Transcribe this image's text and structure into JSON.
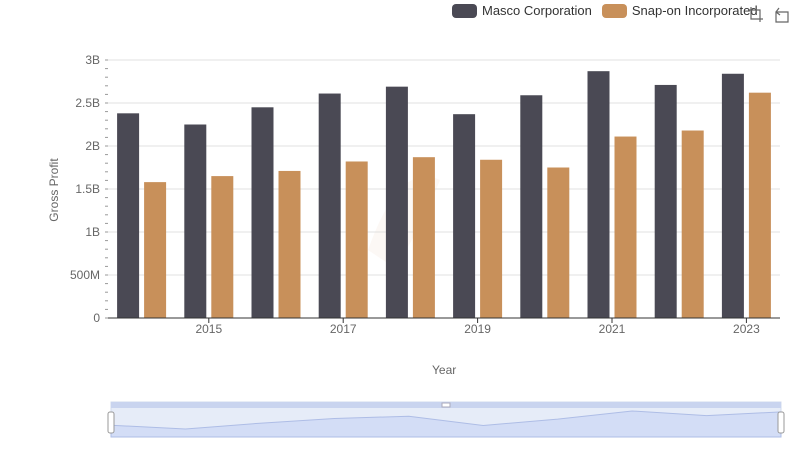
{
  "chart_data": {
    "type": "bar",
    "x_title": "Year",
    "y_title": "Gross Profit",
    "categories": [
      "2014",
      "2015",
      "2016",
      "2017",
      "2018",
      "2019",
      "2020",
      "2021",
      "2022",
      "2023"
    ],
    "x_tick_labels": [
      "2015",
      "2017",
      "2019",
      "2021",
      "2023"
    ],
    "y_tick_labels": [
      "0",
      "500M",
      "1B",
      "1.5B",
      "2B",
      "2.5B",
      "3B"
    ],
    "ylim": [
      0,
      3000000000
    ],
    "grid": true,
    "legend_position": "top-right",
    "series": [
      {
        "name": "Masco Corporation",
        "color": "#4a4954",
        "values": [
          2380000000,
          2250000000,
          2450000000,
          2610000000,
          2690000000,
          2370000000,
          2590000000,
          2870000000,
          2710000000,
          2840000000
        ]
      },
      {
        "name": "Snap-on Incorporated",
        "color": "#c8905a",
        "values": [
          1580000000,
          1650000000,
          1710000000,
          1820000000,
          1870000000,
          1840000000,
          1750000000,
          2110000000,
          2180000000,
          2620000000
        ]
      }
    ]
  },
  "toolbar": {
    "zoom_icon": "crop-zoom-icon",
    "restore_icon": "restore-icon"
  }
}
